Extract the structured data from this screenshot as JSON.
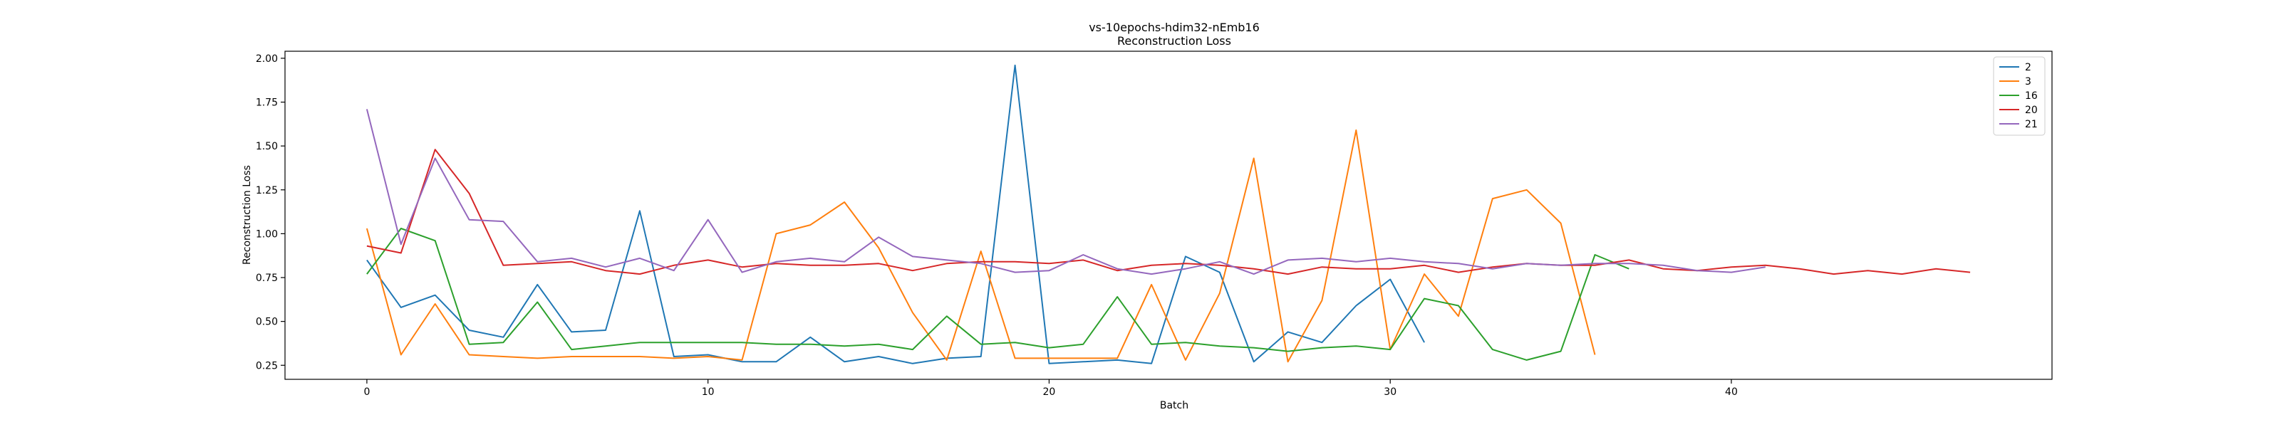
{
  "chart_data": {
    "type": "line",
    "title": "vs-10epochs-hdim32-nEmb16",
    "subtitle": "Reconstruction Loss",
    "xlabel": "Batch",
    "ylabel": "Reconstruction Loss",
    "xlim": [
      -2.4,
      49.4
    ],
    "ylim": [
      0.17,
      2.04
    ],
    "xticks": [
      0,
      10,
      20,
      30,
      40
    ],
    "yticks": [
      0.25,
      0.5,
      0.75,
      1.0,
      1.25,
      1.5,
      1.75,
      2.0
    ],
    "grid": false,
    "legend_position": "top-right",
    "series": [
      {
        "name": "2",
        "color": "#1f77b4",
        "values": [
          0.85,
          0.58,
          0.65,
          0.45,
          0.41,
          0.71,
          0.44,
          0.45,
          1.13,
          0.3,
          0.31,
          0.27,
          0.27,
          0.41,
          0.27,
          0.3,
          0.26,
          0.29,
          0.3,
          1.96,
          0.26,
          0.27,
          0.28,
          0.26,
          0.87,
          0.78,
          0.27,
          0.44,
          0.38,
          0.59,
          0.74,
          0.38
        ]
      },
      {
        "name": "3",
        "color": "#ff7f0e",
        "values": [
          1.03,
          0.31,
          0.6,
          0.31,
          0.3,
          0.29,
          0.3,
          0.3,
          0.3,
          0.29,
          0.3,
          0.28,
          1.0,
          1.05,
          1.18,
          0.92,
          0.55,
          0.28,
          0.9,
          0.29,
          0.29,
          0.29,
          0.29,
          0.71,
          0.28,
          0.66,
          1.43,
          0.27,
          0.62,
          1.59,
          0.34,
          0.77,
          0.53,
          1.2,
          1.25,
          1.06,
          0.31
        ]
      },
      {
        "name": "16",
        "color": "#2ca02c",
        "values": [
          0.77,
          1.03,
          0.96,
          0.37,
          0.38,
          0.61,
          0.34,
          0.36,
          0.38,
          0.38,
          0.38,
          0.38,
          0.37,
          0.37,
          0.36,
          0.37,
          0.34,
          0.53,
          0.37,
          0.38,
          0.35,
          0.37,
          0.64,
          0.37,
          0.38,
          0.36,
          0.35,
          0.33,
          0.35,
          0.36,
          0.34,
          0.63,
          0.59,
          0.34,
          0.28,
          0.33,
          0.88,
          0.8
        ]
      },
      {
        "name": "20",
        "color": "#d62728",
        "values": [
          0.93,
          0.89,
          1.48,
          1.23,
          0.82,
          0.83,
          0.84,
          0.79,
          0.77,
          0.82,
          0.85,
          0.81,
          0.83,
          0.82,
          0.82,
          0.83,
          0.79,
          0.83,
          0.84,
          0.84,
          0.83,
          0.85,
          0.79,
          0.82,
          0.83,
          0.82,
          0.8,
          0.77,
          0.81,
          0.8,
          0.8,
          0.82,
          0.78,
          0.81,
          0.83,
          0.82,
          0.82,
          0.85,
          0.8,
          0.79,
          0.81,
          0.82,
          0.8,
          0.77,
          0.79,
          0.77,
          0.8,
          0.78
        ]
      },
      {
        "name": "21",
        "color": "#9467bd",
        "values": [
          1.71,
          0.94,
          1.43,
          1.08,
          1.07,
          0.84,
          0.86,
          0.81,
          0.86,
          0.79,
          1.08,
          0.78,
          0.84,
          0.86,
          0.84,
          0.98,
          0.87,
          0.85,
          0.83,
          0.78,
          0.79,
          0.88,
          0.8,
          0.77,
          0.8,
          0.84,
          0.77,
          0.85,
          0.86,
          0.84,
          0.86,
          0.84,
          0.83,
          0.8,
          0.83,
          0.82,
          0.83,
          0.83,
          0.82,
          0.79,
          0.78,
          0.81
        ]
      }
    ]
  }
}
